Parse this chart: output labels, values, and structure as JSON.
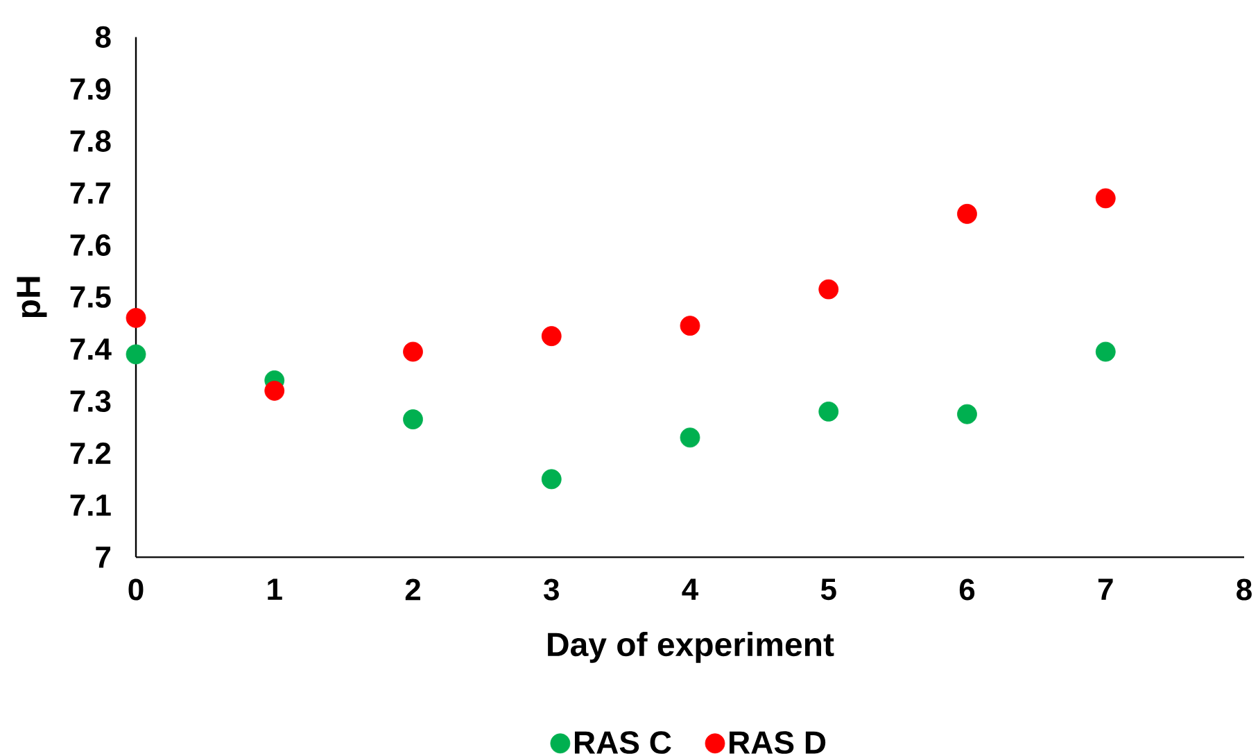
{
  "chart_data": {
    "type": "scatter",
    "xlabel": "Day of experiment",
    "ylabel": "pH",
    "x": [
      0,
      1,
      2,
      3,
      4,
      5,
      6,
      7
    ],
    "series": [
      {
        "name": "RAS C",
        "color": "#00b050",
        "values": [
          7.39,
          7.34,
          7.265,
          7.15,
          7.23,
          7.28,
          7.275,
          7.395
        ]
      },
      {
        "name": "RAS D",
        "color": "#ff0000",
        "values": [
          7.46,
          7.32,
          7.395,
          7.425,
          7.445,
          7.515,
          7.66,
          7.69
        ]
      }
    ],
    "xlim": [
      0,
      8
    ],
    "ylim": [
      7,
      8
    ],
    "xticks": [
      0,
      1,
      2,
      3,
      4,
      5,
      6,
      7,
      8
    ],
    "yticks": [
      7,
      7.1,
      7.2,
      7.3,
      7.4,
      7.5,
      7.6,
      7.7,
      7.8,
      7.9,
      8
    ],
    "legend": "bottom",
    "marker": "circle"
  }
}
